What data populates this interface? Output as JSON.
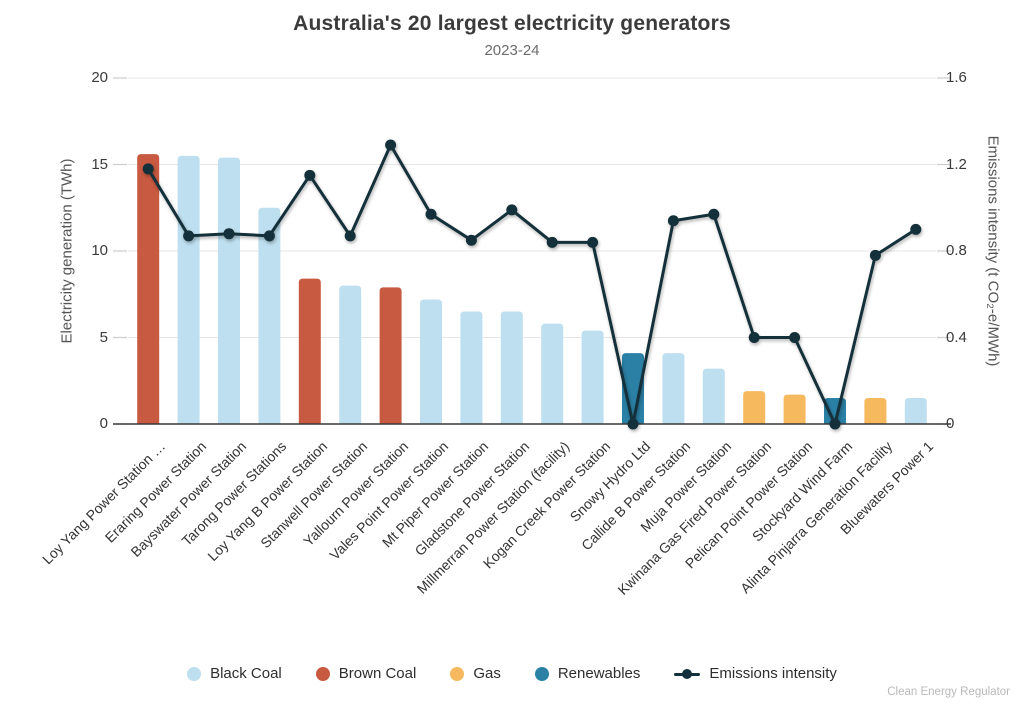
{
  "title": "Australia's 20 largest electricity generators",
  "subtitle": "2023-24",
  "footer": "Clean Energy Regulator",
  "colors": {
    "black_coal": "#BEDFEF",
    "brown_coal": "#C85A41",
    "gas": "#F6B95E",
    "renewables": "#2B80A5",
    "line": "#14303A",
    "grid": "#E6E6E6",
    "axis": "#3a3a3a",
    "tick": "#cccccc"
  },
  "legend": {
    "items": [
      {
        "label": "Black Coal",
        "color_key": "black_coal",
        "type": "circle"
      },
      {
        "label": "Brown Coal",
        "color_key": "brown_coal",
        "type": "circle"
      },
      {
        "label": "Gas",
        "color_key": "gas",
        "type": "circle"
      },
      {
        "label": "Renewables",
        "color_key": "renewables",
        "type": "circle"
      },
      {
        "label": "Emissions intensity",
        "color_key": "line",
        "type": "line"
      }
    ]
  },
  "chart_data": {
    "type": "bar+line",
    "title": "Australia's 20 largest electricity generators",
    "subtitle": "2023-24",
    "categories": [
      "Loy Yang Power Station …",
      "Eraring Power Station",
      "Bayswater Power Station",
      "Tarong Power Stations",
      "Loy Yang B Power Station",
      "Stanwell Power Station",
      "Yallourn Power Station",
      "Vales Point Power Station",
      "Mt Piper Power Station",
      "Gladstone Power Station",
      "Millmerran Power Station (facility)",
      "Kogan Creek Power Station",
      "Snowy Hydro Ltd",
      "Callide B Power Station",
      "Muja Power Station",
      "Kwinana Gas Fired Power Station",
      "Pelican Point Power Station",
      "Stockyard Wind Farm",
      "Alinta Pinjarra Generation Facility",
      "Bluewaters Power 1"
    ],
    "series": [
      {
        "name": "Electricity generation",
        "type": "bar",
        "axis": "left",
        "unit": "TWh",
        "values": [
          15.6,
          15.5,
          15.4,
          12.5,
          8.4,
          8.0,
          7.9,
          7.2,
          6.5,
          6.5,
          5.8,
          5.4,
          4.1,
          4.1,
          3.2,
          1.9,
          1.7,
          1.5,
          1.5,
          1.5
        ],
        "fuel": [
          "brown_coal",
          "black_coal",
          "black_coal",
          "black_coal",
          "brown_coal",
          "black_coal",
          "brown_coal",
          "black_coal",
          "black_coal",
          "black_coal",
          "black_coal",
          "black_coal",
          "renewables",
          "black_coal",
          "black_coal",
          "gas",
          "gas",
          "renewables",
          "gas",
          "black_coal"
        ]
      },
      {
        "name": "Emissions intensity",
        "type": "line",
        "axis": "right",
        "unit": "t CO₂-e/MWh",
        "values": [
          1.18,
          0.87,
          0.88,
          0.87,
          1.15,
          0.87,
          1.29,
          0.97,
          0.85,
          0.99,
          0.84,
          0.84,
          0.0,
          0.94,
          0.97,
          0.4,
          0.4,
          0.0,
          0.78,
          0.9
        ]
      }
    ],
    "left_axis": {
      "label": "Electricity generation (TWh)",
      "range": [
        0,
        20
      ],
      "ticks": [
        0,
        5,
        10,
        15,
        20
      ]
    },
    "right_axis": {
      "label": "Emissions intensity (t CO₂-e/MWh)",
      "range": [
        0,
        1.6
      ],
      "ticks": [
        0,
        0.4,
        0.8,
        1.2,
        1.6
      ]
    },
    "grid": true,
    "legend_position": "bottom"
  }
}
